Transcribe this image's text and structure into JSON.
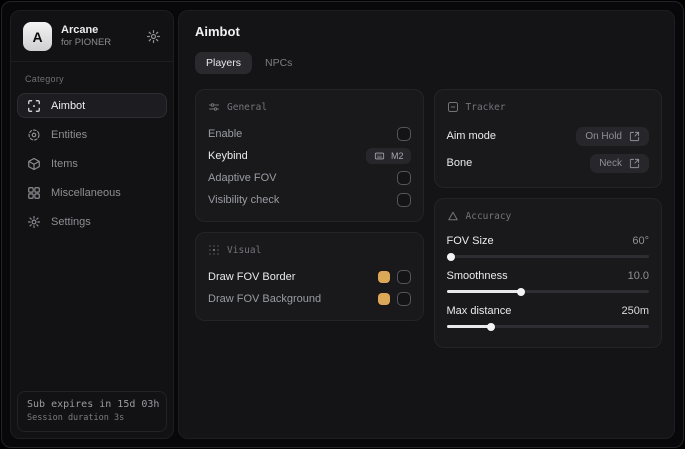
{
  "app": {
    "logo_letter": "A",
    "name": "Arcane",
    "subtitle": "for PIONER"
  },
  "sidebar": {
    "category_label": "Category",
    "items": [
      {
        "label": "Aimbot",
        "icon": "crosshair-scan-icon",
        "selected": true
      },
      {
        "label": "Entities",
        "icon": "radar-icon",
        "selected": false
      },
      {
        "label": "Items",
        "icon": "box-icon",
        "selected": false
      },
      {
        "label": "Miscellaneous",
        "icon": "grid-icon",
        "selected": false
      },
      {
        "label": "Settings",
        "icon": "gear-icon",
        "selected": false
      }
    ],
    "footer": {
      "line1": "Sub expires in 15d 03h",
      "line2": "Session duration 3s"
    }
  },
  "main": {
    "title": "Aimbot",
    "tabs": [
      {
        "label": "Players",
        "selected": true
      },
      {
        "label": "NPCs",
        "selected": false
      }
    ],
    "cards": {
      "general": {
        "title": "General",
        "rows": [
          {
            "label": "Enable",
            "control": "checkbox",
            "checked": false
          },
          {
            "label": "Keybind",
            "control": "keybind",
            "value": "M2"
          },
          {
            "label": "Adaptive FOV",
            "control": "checkbox",
            "checked": false
          },
          {
            "label": "Visibility check",
            "control": "checkbox",
            "checked": false
          }
        ]
      },
      "visual": {
        "title": "Visual",
        "rows": [
          {
            "label": "Draw FOV Border",
            "control": "color-checkbox",
            "color": "#dba858",
            "checked": false
          },
          {
            "label": "Draw FOV Background",
            "control": "color-checkbox",
            "color": "#dba858",
            "checked": false
          }
        ]
      },
      "tracker": {
        "title": "Tracker",
        "rows": [
          {
            "label": "Aim mode",
            "control": "dropdown",
            "value": "On Hold"
          },
          {
            "label": "Bone",
            "control": "dropdown",
            "value": "Neck"
          }
        ]
      },
      "accuracy": {
        "title": "Accuracy",
        "sliders": [
          {
            "label": "FOV Size",
            "value": "60°",
            "percent": 2
          },
          {
            "label": "Smoothness",
            "value": "10.0",
            "percent": 37
          },
          {
            "label": "Max distance",
            "value": "250m",
            "percent": 22
          }
        ]
      }
    }
  },
  "colors": {
    "accent_swatch": "#dba858"
  }
}
